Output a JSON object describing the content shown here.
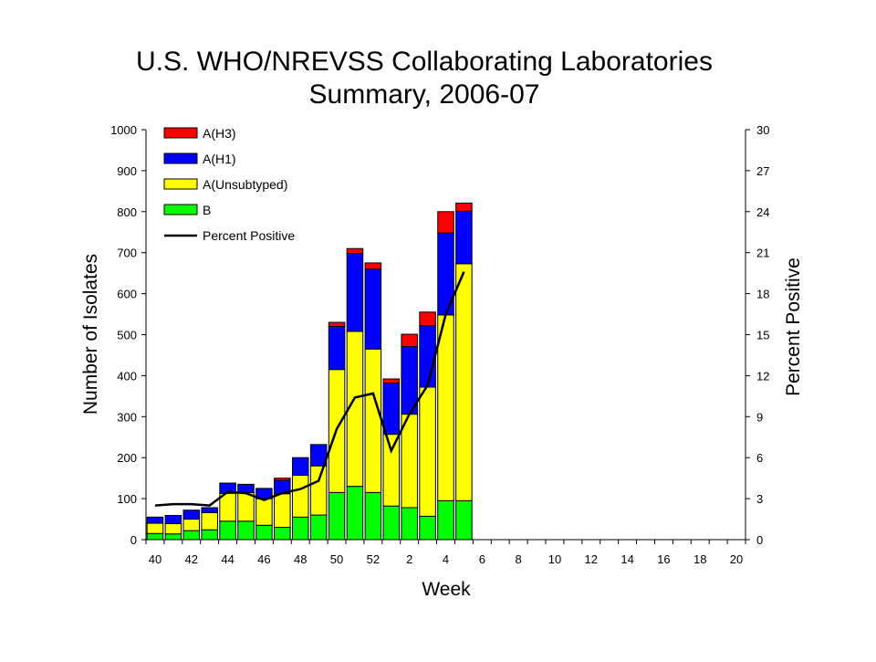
{
  "colors": {
    "A_H3": "#ff0000",
    "A_H1": "#0000ff",
    "A_Unsubtyped": "#ffff00",
    "B": "#00ff00",
    "percent_line": "#000000"
  },
  "chart_data": {
    "type": "bar",
    "subtype": "stacked bar with line on secondary axis",
    "title": "U.S. WHO/NREVSS Collaborating Laboratories",
    "subtitle": "Summary, 2006-07",
    "xlabel": "Week",
    "ylabel": "Number of Isolates",
    "y2label": "Percent Positive",
    "ylim": [
      0,
      1000
    ],
    "y2lim": [
      0,
      30
    ],
    "yticks": [
      "0",
      "100",
      "200",
      "300",
      "400",
      "500",
      "600",
      "700",
      "800",
      "900",
      "1000"
    ],
    "y2ticks": [
      "0",
      "3",
      "6",
      "9",
      "12",
      "15",
      "18",
      "21",
      "24",
      "27",
      "30"
    ],
    "xtick_labels": [
      "40",
      "42",
      "44",
      "46",
      "48",
      "50",
      "52",
      "2",
      "4",
      "6",
      "8",
      "10",
      "12",
      "14",
      "16",
      "18",
      "20"
    ],
    "weeks": [
      "40",
      "41",
      "42",
      "43",
      "44",
      "45",
      "46",
      "47",
      "48",
      "49",
      "50",
      "51",
      "52",
      "1",
      "2",
      "3",
      "4",
      "5",
      "6",
      "7",
      "8",
      "9",
      "10",
      "11",
      "12",
      "13",
      "14",
      "15",
      "16",
      "17",
      "18",
      "19",
      "20"
    ],
    "series": [
      {
        "name": "B",
        "color_key": "B",
        "values": [
          15,
          14,
          22,
          24,
          45,
          45,
          35,
          30,
          55,
          60,
          115,
          130,
          115,
          82,
          78,
          57,
          95,
          95,
          null,
          null,
          null,
          null,
          null,
          null,
          null,
          null,
          null,
          null,
          null,
          null,
          null,
          null,
          null
        ]
      },
      {
        "name": "A(Unsubtyped)",
        "color_key": "A_Unsubtyped",
        "values": [
          25,
          25,
          28,
          42,
          68,
          70,
          65,
          82,
          102,
          120,
          300,
          378,
          350,
          175,
          228,
          315,
          453,
          578,
          null,
          null,
          null,
          null,
          null,
          null,
          null,
          null,
          null,
          null,
          null,
          null,
          null,
          null,
          null
        ]
      },
      {
        "name": "A(H1)",
        "color_key": "A_H1",
        "values": [
          15,
          20,
          22,
          12,
          25,
          20,
          25,
          33,
          43,
          52,
          105,
          190,
          195,
          125,
          165,
          150,
          200,
          128,
          null,
          null,
          null,
          null,
          null,
          null,
          null,
          null,
          null,
          null,
          null,
          null,
          null,
          null,
          null
        ]
      },
      {
        "name": "A(H3)",
        "color_key": "A_H3",
        "values": [
          0,
          0,
          0,
          0,
          0,
          0,
          0,
          5,
          0,
          0,
          10,
          12,
          15,
          10,
          30,
          33,
          52,
          20,
          null,
          null,
          null,
          null,
          null,
          null,
          null,
          null,
          null,
          null,
          null,
          null,
          null,
          null,
          null
        ]
      }
    ],
    "line_series": {
      "name": "Percent Positive",
      "axis": "secondary",
      "color_key": "percent_line",
      "values": [
        2.5,
        2.6,
        2.6,
        2.5,
        3.5,
        3.4,
        2.9,
        3.4,
        3.7,
        4.3,
        8.1,
        10.4,
        10.7,
        6.5,
        9.2,
        11.3,
        16.5,
        19.6,
        null,
        null,
        null,
        null,
        null,
        null,
        null,
        null,
        null,
        null,
        null,
        null,
        null,
        null,
        null
      ]
    },
    "legend": {
      "placement": "top-left",
      "entries": [
        {
          "label": "A(H3)",
          "kind": "swatch",
          "color_key": "A_H3"
        },
        {
          "label": "A(H1)",
          "kind": "swatch",
          "color_key": "A_H1"
        },
        {
          "label": "A(Unsubtyped)",
          "kind": "swatch",
          "color_key": "A_Unsubtyped"
        },
        {
          "label": "B",
          "kind": "swatch",
          "color_key": "B"
        },
        {
          "label": "Percent Positive",
          "kind": "line",
          "color_key": "percent_line"
        }
      ]
    },
    "grid": false
  }
}
